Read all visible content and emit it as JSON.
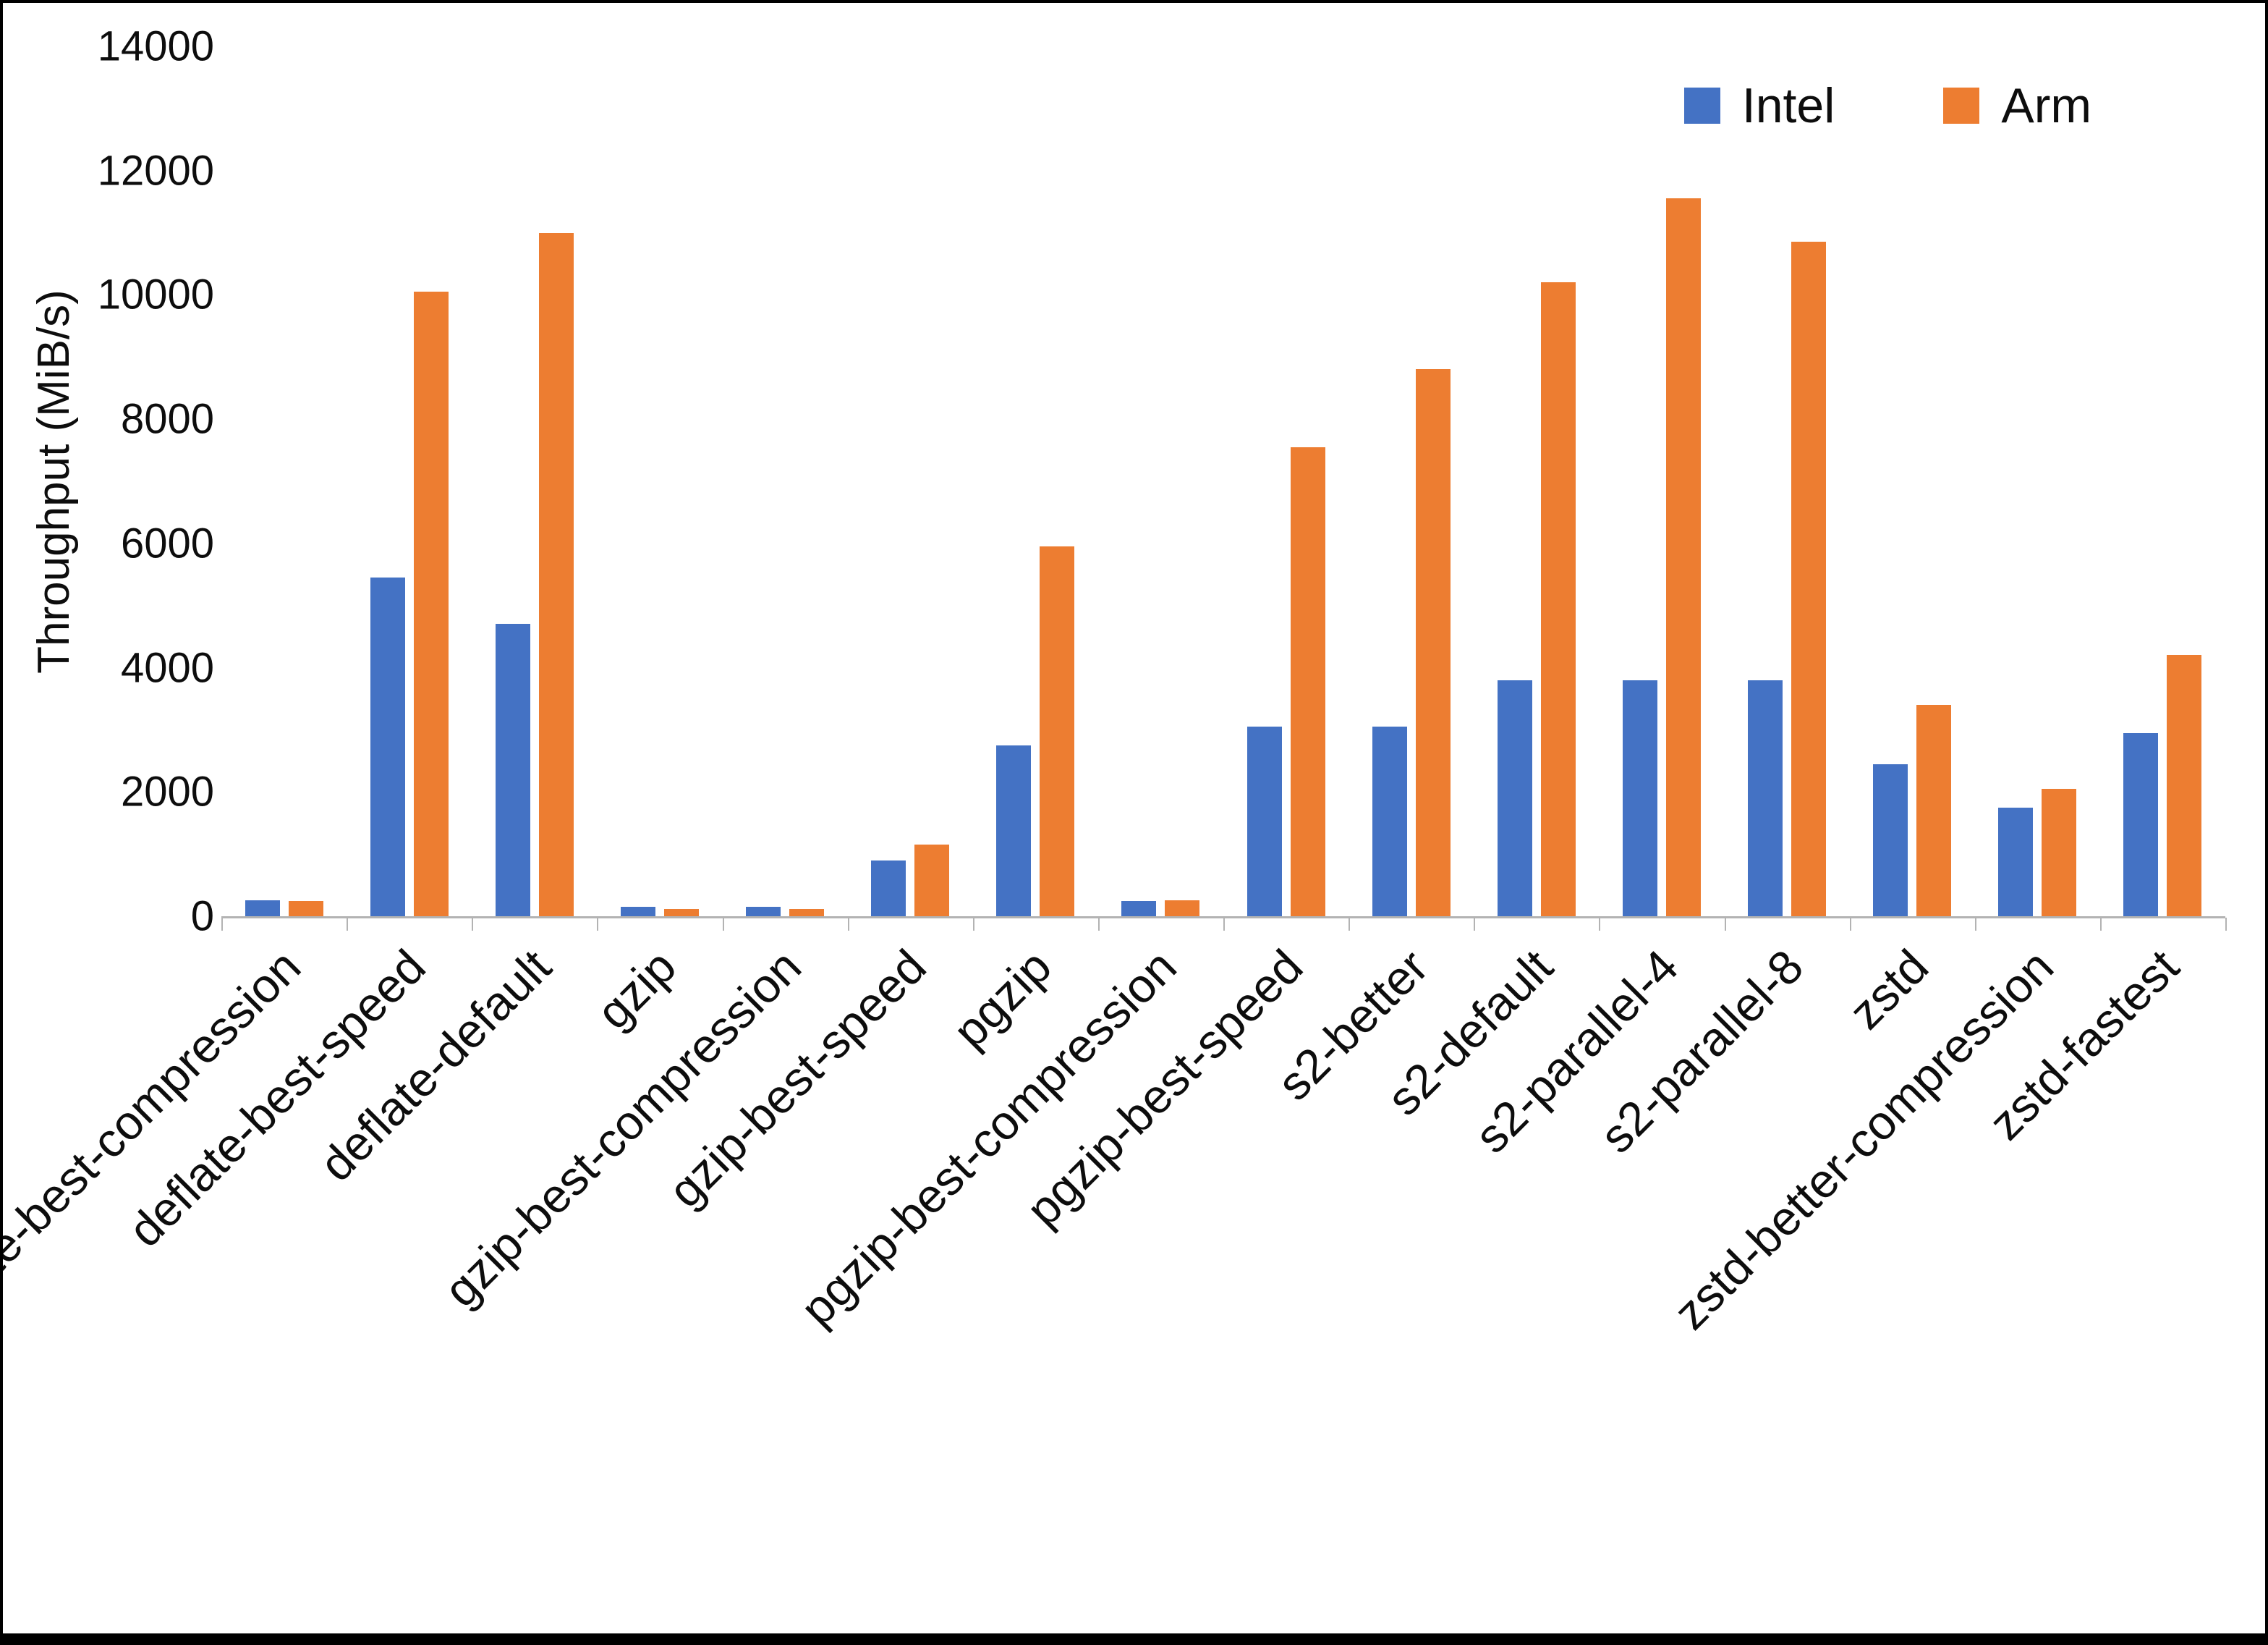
{
  "figure": {
    "background": "#ffffff",
    "frame_color": "#000000"
  },
  "chart_data": {
    "type": "bar",
    "title": "",
    "xlabel": "",
    "ylabel": "Throughput (MiB/s)",
    "ylim": [
      0,
      14000
    ],
    "ytick_step": 2000,
    "grid": false,
    "legend_position": "top-right",
    "axis_color": "#b3b3b3",
    "text_color": "#0d0d0d",
    "categories": [
      "deflate-best-compression",
      "deflate-best-speed",
      "deflate-default",
      "gzip",
      "gzip-best-compression",
      "gzip-best-speed",
      "pgzip",
      "pgzip-best-compression",
      "pgzip-best-speed",
      "s2-better",
      "s2-default",
      "s2-parallel-4",
      "s2-parallel-8",
      "zstd",
      "zstd-better-compression",
      "zstd-fastest"
    ],
    "series": [
      {
        "name": "Intel",
        "color": "#4472C4",
        "values": [
          260,
          5450,
          4700,
          150,
          150,
          900,
          2750,
          250,
          3050,
          3050,
          3800,
          3800,
          3800,
          2450,
          1750,
          2950
        ]
      },
      {
        "name": "Arm",
        "color": "#ED7D31",
        "values": [
          250,
          10050,
          11000,
          120,
          120,
          1150,
          5950,
          260,
          7550,
          8800,
          10200,
          11550,
          10850,
          3400,
          2050,
          4200
        ]
      }
    ]
  }
}
